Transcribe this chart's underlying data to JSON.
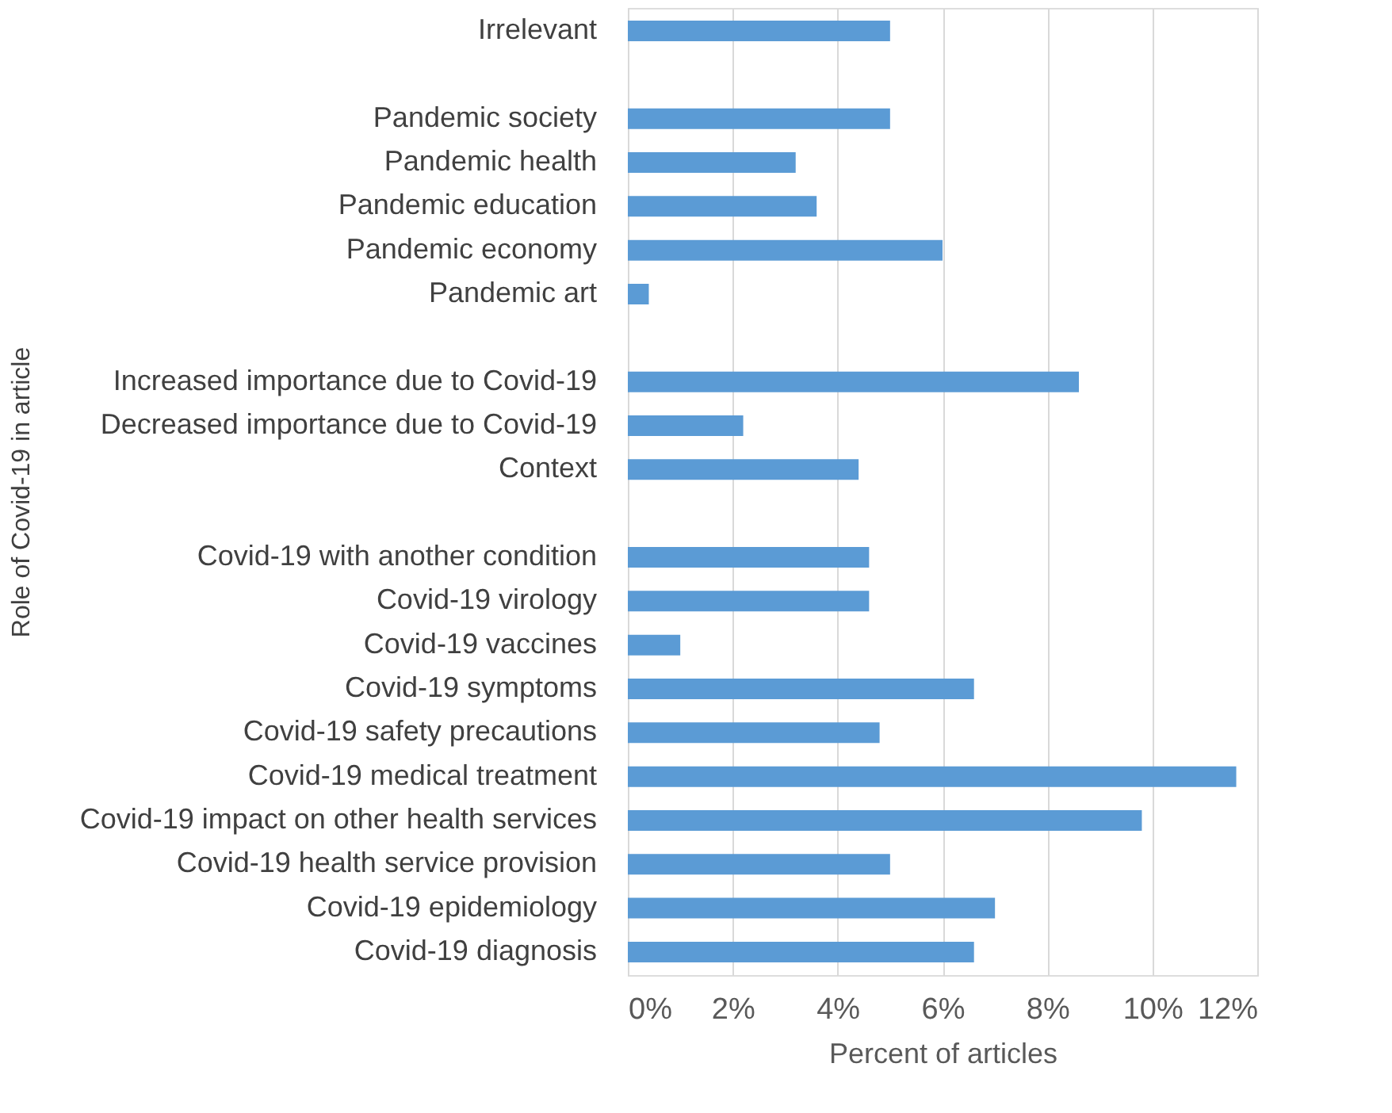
{
  "chart_data": {
    "type": "bar",
    "orientation": "horizontal",
    "xlabel": "Percent of articles",
    "ylabel": "Role of Covid-19 in article",
    "categories": [
      "Irrelevant",
      null,
      "Pandemic society",
      "Pandemic health",
      "Pandemic education",
      "Pandemic economy",
      "Pandemic art",
      null,
      "Increased importance due to Covid-19",
      "Decreased importance due to Covid-19",
      "Context",
      null,
      "Covid-19 with another condition",
      "Covid-19 virology",
      "Covid-19 vaccines",
      "Covid-19 symptoms",
      "Covid-19 safety precautions",
      "Covid-19 medical treatment",
      "Covid-19 impact on other health services",
      "Covid-19 health service provision",
      "Covid-19 epidemiology",
      "Covid-19 diagnosis"
    ],
    "values": [
      5.0,
      null,
      5.0,
      3.2,
      3.6,
      6.0,
      0.4,
      null,
      8.6,
      2.2,
      4.4,
      null,
      4.6,
      4.6,
      1.0,
      6.6,
      4.8,
      11.6,
      9.8,
      5.0,
      7.0,
      6.6
    ],
    "color": "#5b9bd5",
    "xlim": [
      0,
      12
    ],
    "xticks": [
      {
        "value": 0,
        "label": "0%"
      },
      {
        "value": 2,
        "label": "2%"
      },
      {
        "value": 4,
        "label": "4%"
      },
      {
        "value": 6,
        "label": "6%"
      },
      {
        "value": 8,
        "label": "8%"
      },
      {
        "value": 10,
        "label": "10%"
      },
      {
        "value": 12,
        "label": "12%"
      }
    ],
    "grid": "x"
  }
}
